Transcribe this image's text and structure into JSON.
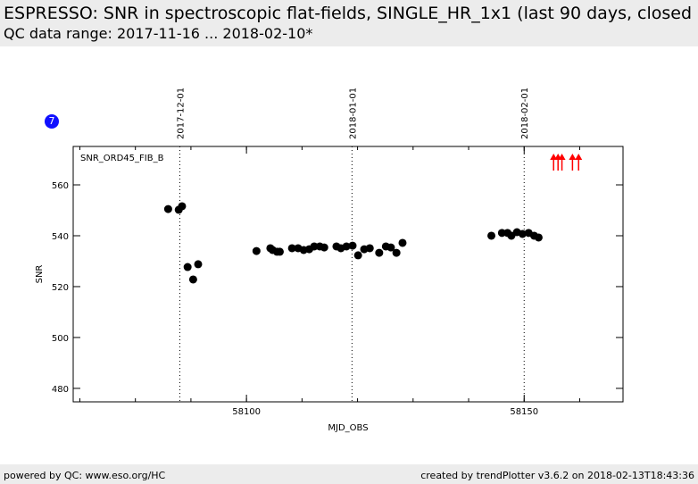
{
  "header": {
    "title": "ESPRESSO: SNR in spectroscopic flat-fields, SINGLE_HR_1x1 (last 90 days, closed",
    "range": "QC data range: 2017-11-16 ... 2018-02-10*"
  },
  "badge": "7",
  "footer": {
    "left": "powered by QC: www.eso.org/HC",
    "right": "created by trendPlotter v3.6.2 on 2018-02-13T18:43:36"
  },
  "chart_data": {
    "type": "scatter",
    "title": "SNR_ORD45_FIB_B",
    "xlabel": "MJD_OBS",
    "ylabel": "SNR",
    "xlim": [
      58068.8,
      58167.8
    ],
    "ylim": [
      474.7,
      575.1
    ],
    "xticks": [
      58100,
      58150
    ],
    "yticks": [
      480,
      500,
      520,
      540,
      560
    ],
    "date_markers": [
      {
        "x": 58088,
        "label": "2017-12-01"
      },
      {
        "x": 58119,
        "label": "2018-01-01"
      },
      {
        "x": 58150,
        "label": "2018-02-01"
      }
    ],
    "x": [
      58085.9,
      58087.8,
      58088.4,
      58089.4,
      58090.4,
      58091.3,
      58101.8,
      58104.3,
      58104.7,
      58105.5,
      58106.0,
      58108.2,
      58109.3,
      58110.3,
      58111.3,
      58112.2,
      58113.2,
      58114.0,
      58116.2,
      58117.0,
      58118.0,
      58119.1,
      58120.1,
      58121.2,
      58122.2,
      58123.9,
      58125.1,
      58126.0,
      58127.0,
      58128.1,
      58144.1,
      58146.0,
      58147.0,
      58147.7,
      58148.7,
      58149.7,
      58150.8,
      58151.8,
      58152.6
    ],
    "y": [
      550.5,
      550.2,
      551.6,
      527.7,
      522.8,
      528.8,
      534.0,
      535.1,
      534.4,
      533.7,
      533.7,
      535.1,
      535.1,
      534.4,
      534.7,
      535.8,
      535.8,
      535.4,
      535.8,
      535.1,
      535.8,
      536.1,
      532.3,
      534.7,
      535.1,
      533.3,
      535.8,
      535.4,
      533.3,
      537.2,
      540.0,
      541.1,
      541.1,
      540.0,
      541.4,
      540.7,
      541.1,
      540.0,
      539.3
    ],
    "out_of_range_above_x": [
      58155.3,
      58156.1,
      58156.8,
      58158.7,
      58159.8
    ],
    "out_of_range_color": "#ff0000"
  }
}
